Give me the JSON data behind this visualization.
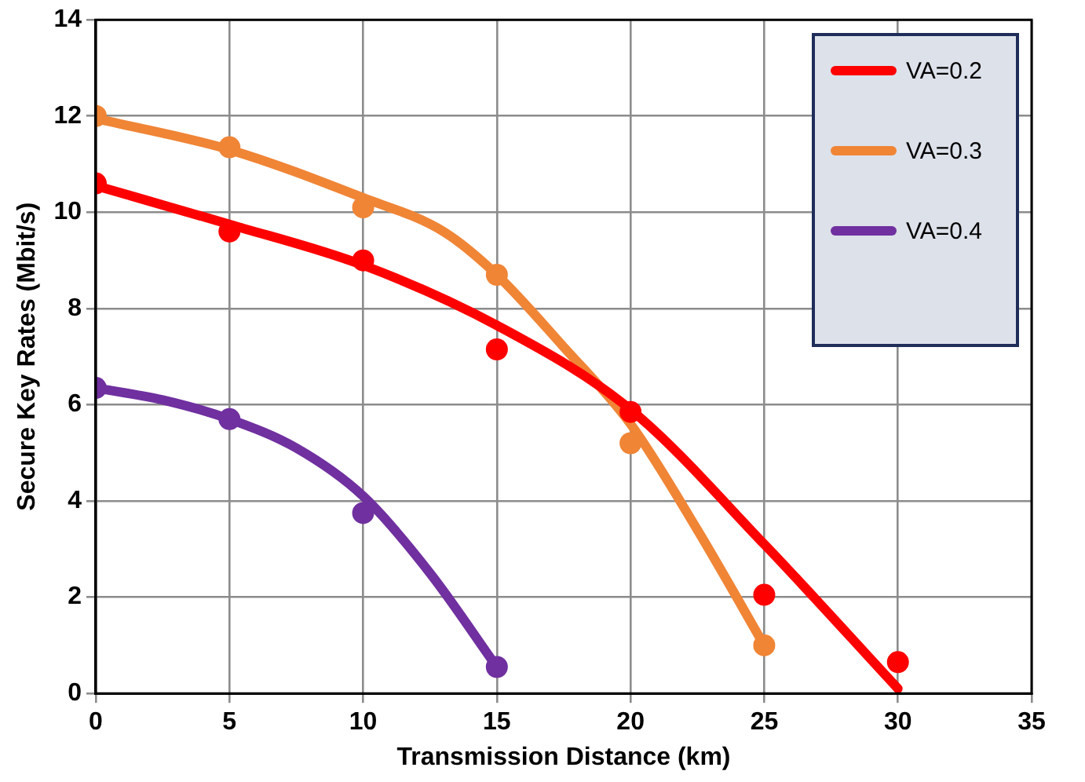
{
  "chart_data": {
    "type": "scatter",
    "xlabel": "Transmission Distance (km)",
    "ylabel": "Secure Key Rates (Mbit/s)",
    "xlim": [
      0,
      35
    ],
    "xticks": [
      0,
      5,
      10,
      15,
      20,
      25,
      30,
      35
    ],
    "ylim": [
      0,
      14
    ],
    "yticks": [
      0,
      2,
      4,
      6,
      8,
      10,
      12,
      14
    ],
    "grid": true,
    "legend": "top right",
    "marker": "circle",
    "series": [
      {
        "type": "line",
        "marker": "none",
        "name": "VA=0.2",
        "color": "#ff0000",
        "x": [
          0,
          5,
          10,
          15,
          20,
          25,
          30
        ],
        "values": [
          10.55,
          9.75,
          8.9,
          7.65,
          5.9,
          3.1,
          0.1
        ]
      },
      {
        "type": "line",
        "marker": "none",
        "name": "VA=0.3",
        "color": "#f08536",
        "x": [
          0,
          5,
          10,
          13,
          15,
          17.5,
          20,
          22.5,
          25
        ],
        "values": [
          11.95,
          11.3,
          10.3,
          9.6,
          8.7,
          7.2,
          5.6,
          3.4,
          1.0
        ]
      },
      {
        "type": "line",
        "marker": "none",
        "name": "VA=0.4",
        "color": "#7030a0",
        "x": [
          0,
          2.5,
          5,
          7.5,
          10,
          12.5,
          15
        ],
        "values": [
          6.35,
          6.1,
          5.7,
          5.1,
          4.1,
          2.5,
          0.55
        ]
      },
      {
        "color": "#ff0000",
        "x": [
          0,
          5,
          10,
          15,
          20,
          25,
          30
        ],
        "values": [
          10.6,
          9.6,
          9.0,
          7.15,
          5.85,
          2.05,
          0.65
        ]
      },
      {
        "color": "#f08536",
        "x": [
          0,
          5,
          10,
          15,
          20,
          25
        ],
        "values": [
          12.0,
          11.35,
          10.1,
          8.7,
          5.2,
          1.0
        ]
      },
      {
        "color": "#7030a0",
        "x": [
          0,
          5,
          10,
          15
        ],
        "values": [
          6.35,
          5.7,
          3.75,
          0.55
        ]
      }
    ]
  }
}
